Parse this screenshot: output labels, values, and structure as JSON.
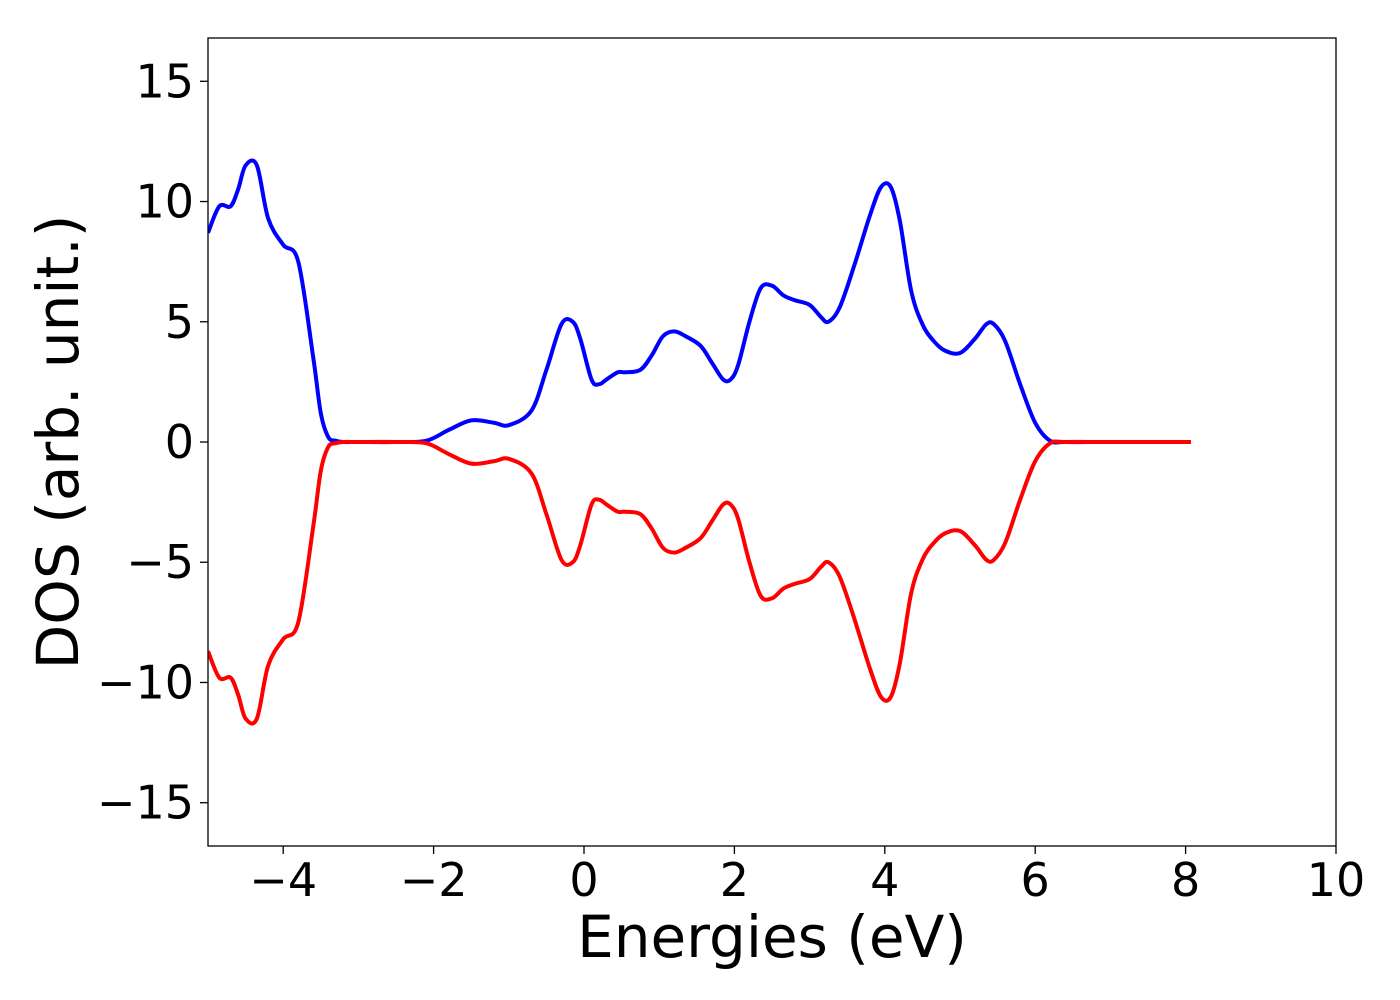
{
  "chart_data": {
    "type": "line",
    "title": "",
    "xlabel": "Energies (eV)",
    "ylabel": "DOS (arb. unit.)",
    "xlim": [
      -5,
      10
    ],
    "ylim": [
      -16.8,
      16.8
    ],
    "grid": false,
    "legend": "none",
    "x_ticks": [
      -4,
      -2,
      0,
      2,
      4,
      6,
      8,
      10
    ],
    "x_tick_labels": [
      "−4",
      "−2",
      "0",
      "2",
      "4",
      "6",
      "8",
      "10"
    ],
    "y_ticks": [
      15,
      10,
      5,
      0,
      -5,
      -10,
      -15
    ],
    "y_tick_labels": [
      "15",
      "10",
      "5",
      "0",
      "−5",
      "−10",
      "−15"
    ],
    "series": [
      {
        "color": "#0000ff",
        "x": [
          -5.0,
          -4.85,
          -4.7,
          -4.6,
          -4.5,
          -4.35,
          -4.2,
          -4.0,
          -3.8,
          -3.6,
          -3.5,
          -3.4,
          -3.3,
          -3.2,
          -3.0,
          -2.5,
          -2.1,
          -1.8,
          -1.5,
          -1.2,
          -1.0,
          -0.7,
          -0.5,
          -0.3,
          -0.15,
          -0.05,
          0.1,
          0.2,
          0.3,
          0.45,
          0.55,
          0.75,
          0.9,
          1.05,
          1.2,
          1.35,
          1.55,
          1.7,
          1.85,
          1.95,
          2.05,
          2.2,
          2.35,
          2.5,
          2.65,
          2.8,
          3.0,
          3.15,
          3.25,
          3.4,
          3.6,
          3.8,
          3.95,
          4.08,
          4.2,
          4.35,
          4.5,
          4.65,
          4.8,
          5.0,
          5.2,
          5.35,
          5.45,
          5.6,
          5.8,
          6.0,
          6.2,
          6.4,
          7.0,
          8.07
        ],
        "values": [
          8.7,
          9.8,
          9.8,
          10.5,
          11.5,
          11.5,
          9.3,
          8.2,
          7.5,
          3.5,
          1.2,
          0.2,
          0.05,
          0.0,
          0.0,
          0.0,
          0.05,
          0.5,
          0.9,
          0.8,
          0.7,
          1.3,
          3.0,
          4.9,
          5.0,
          4.3,
          2.6,
          2.4,
          2.6,
          2.9,
          2.9,
          3.0,
          3.6,
          4.4,
          4.6,
          4.4,
          4.0,
          3.3,
          2.6,
          2.6,
          3.2,
          5.0,
          6.4,
          6.5,
          6.1,
          5.9,
          5.7,
          5.2,
          5.0,
          5.6,
          7.4,
          9.4,
          10.6,
          10.6,
          9.2,
          6.3,
          4.9,
          4.2,
          3.8,
          3.7,
          4.3,
          4.9,
          4.9,
          4.2,
          2.4,
          0.8,
          0.05,
          0.0,
          0.0,
          0.0
        ]
      },
      {
        "color": "#ff0000",
        "x": [
          -5.0,
          -4.85,
          -4.7,
          -4.6,
          -4.5,
          -4.35,
          -4.2,
          -4.0,
          -3.8,
          -3.6,
          -3.5,
          -3.4,
          -3.3,
          -3.2,
          -3.0,
          -2.5,
          -2.1,
          -1.8,
          -1.5,
          -1.2,
          -1.0,
          -0.7,
          -0.5,
          -0.3,
          -0.15,
          -0.05,
          0.1,
          0.2,
          0.3,
          0.45,
          0.55,
          0.75,
          0.9,
          1.05,
          1.2,
          1.35,
          1.55,
          1.7,
          1.85,
          1.95,
          2.05,
          2.2,
          2.35,
          2.5,
          2.65,
          2.8,
          3.0,
          3.15,
          3.25,
          3.4,
          3.6,
          3.8,
          3.95,
          4.08,
          4.2,
          4.35,
          4.5,
          4.65,
          4.8,
          5.0,
          5.2,
          5.35,
          5.45,
          5.6,
          5.8,
          6.0,
          6.2,
          6.4,
          7.0,
          8.07
        ],
        "values": [
          -8.7,
          -9.8,
          -9.8,
          -10.5,
          -11.5,
          -11.5,
          -9.3,
          -8.2,
          -7.5,
          -3.5,
          -1.2,
          -0.2,
          -0.05,
          0.0,
          0.0,
          0.0,
          -0.05,
          -0.5,
          -0.9,
          -0.8,
          -0.7,
          -1.3,
          -3.0,
          -4.9,
          -5.0,
          -4.3,
          -2.6,
          -2.4,
          -2.6,
          -2.9,
          -2.9,
          -3.0,
          -3.6,
          -4.4,
          -4.6,
          -4.4,
          -4.0,
          -3.3,
          -2.6,
          -2.6,
          -3.2,
          -5.0,
          -6.4,
          -6.5,
          -6.1,
          -5.9,
          -5.7,
          -5.2,
          -5.0,
          -5.6,
          -7.4,
          -9.4,
          -10.6,
          -10.6,
          -9.2,
          -6.3,
          -4.9,
          -4.2,
          -3.8,
          -3.7,
          -4.3,
          -4.9,
          -4.9,
          -4.2,
          -2.4,
          -0.8,
          -0.05,
          0.0,
          0.0,
          0.0
        ]
      }
    ]
  }
}
